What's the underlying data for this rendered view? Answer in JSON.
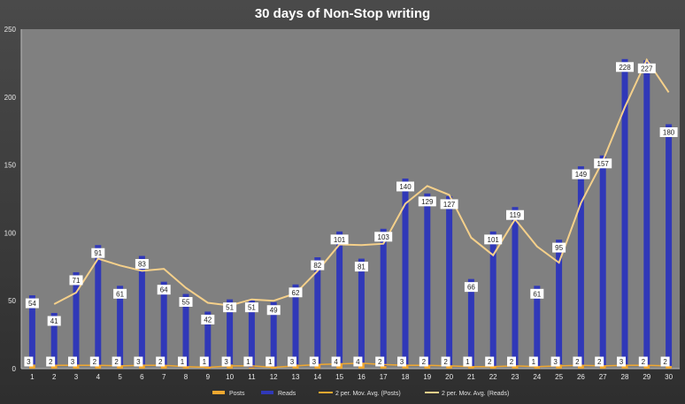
{
  "chart_data": {
    "type": "bar",
    "title": "30 days of Non-Stop writing",
    "xlabel": "",
    "ylabel": "",
    "ylim": [
      0,
      250
    ],
    "yticks": [
      0,
      50,
      100,
      150,
      200,
      250
    ],
    "grid": false,
    "legend_position": "bottom",
    "categories": [
      "1",
      "2",
      "3",
      "4",
      "5",
      "6",
      "7",
      "8",
      "9",
      "10",
      "11",
      "12",
      "13",
      "14",
      "15",
      "16",
      "17",
      "18",
      "19",
      "20",
      "21",
      "22",
      "23",
      "24",
      "25",
      "26",
      "27",
      "28",
      "29",
      "30"
    ],
    "series": [
      {
        "name": "Posts",
        "type": "bar",
        "color": "#f0a830",
        "values": [
          3,
          2,
          3,
          2,
          2,
          3,
          2,
          1,
          1,
          3,
          1,
          1,
          3,
          3,
          4,
          4,
          2,
          3,
          2,
          2,
          1,
          2,
          2,
          1,
          3,
          2,
          2,
          3,
          2,
          2
        ]
      },
      {
        "name": "Reads",
        "type": "bar",
        "color": "#3038b8",
        "values": [
          54,
          41,
          71,
          91,
          61,
          83,
          64,
          55,
          42,
          51,
          51,
          49,
          62,
          82,
          101,
          81,
          103,
          140,
          129,
          127,
          66,
          101,
          119,
          61,
          95,
          149,
          157,
          228,
          227,
          180
        ]
      },
      {
        "name": "2 per. Mov. Avg. (Posts)",
        "type": "line",
        "color": "#f0a830"
      },
      {
        "name": "2 per. Mov. Avg. (Reads)",
        "type": "line",
        "color": "#f5d08a"
      }
    ]
  }
}
